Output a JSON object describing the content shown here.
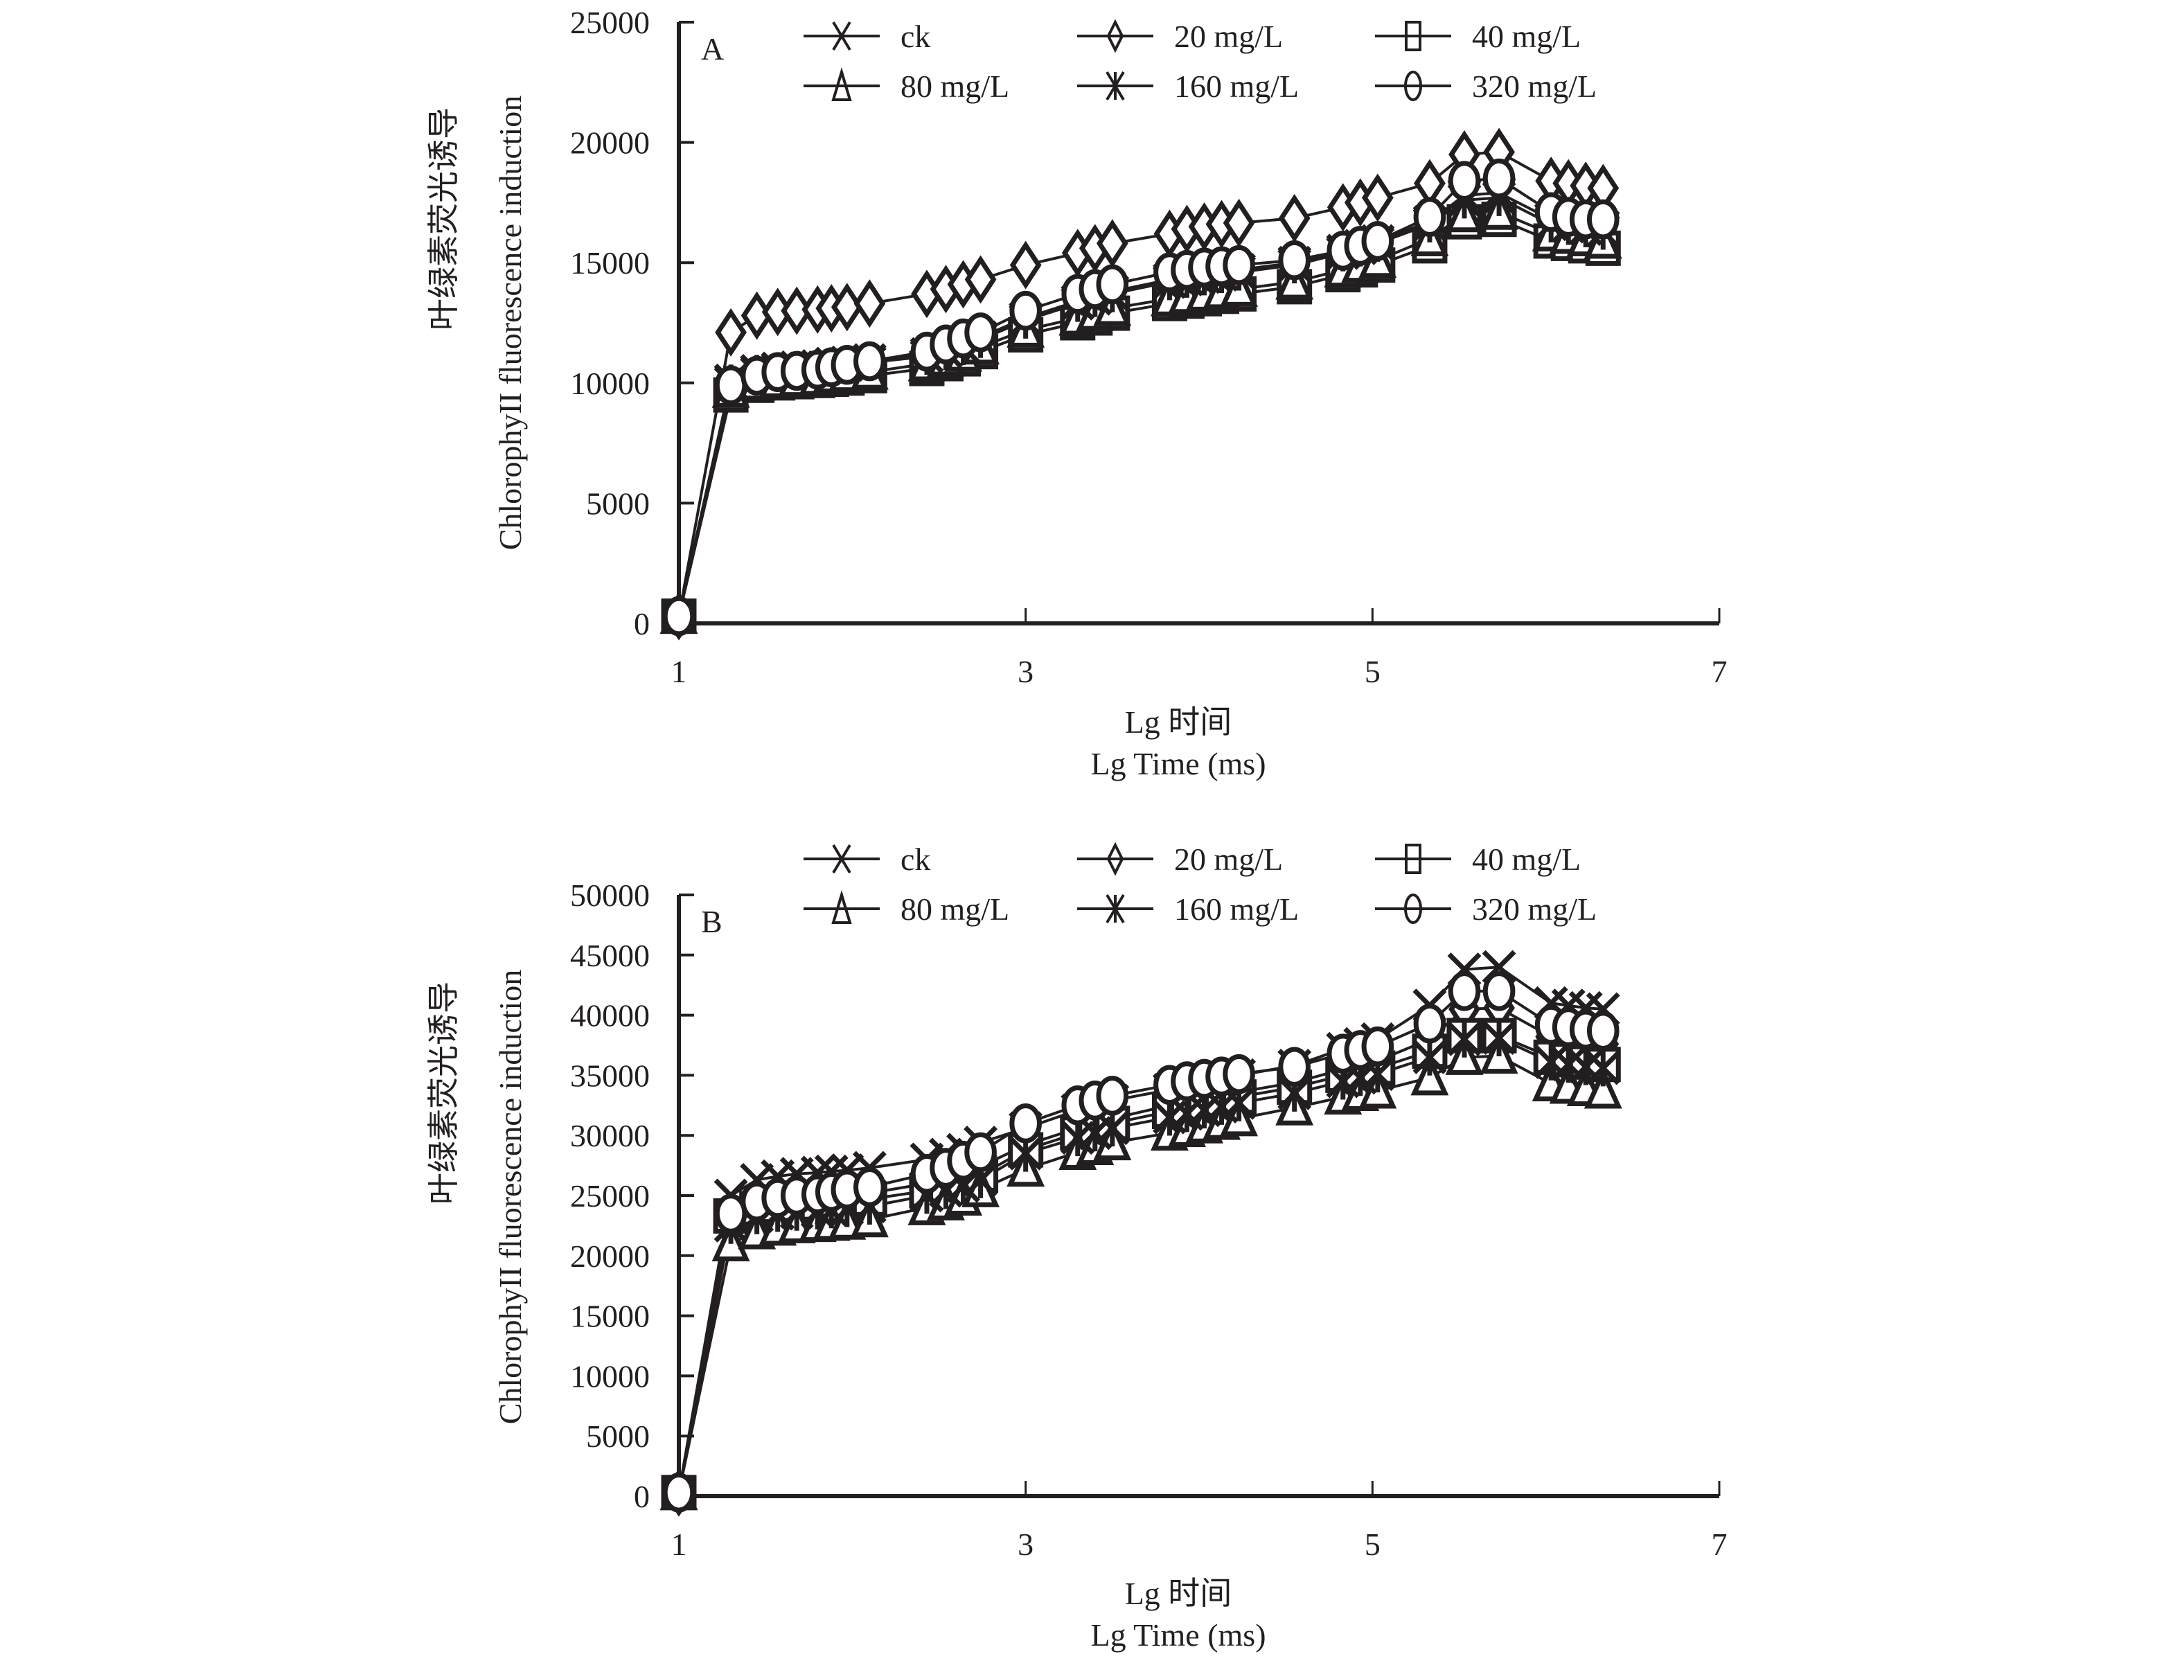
{
  "chart_data": [
    {
      "type": "line",
      "panel": "A",
      "title": "",
      "xlabel_cn": "Lg 时间",
      "xlabel": "Lg Time (ms)",
      "ylabel_cn": "叶绿素荧光诱导",
      "ylabel": "ChlorophyII fluorescence induction",
      "xlim": [
        1,
        7
      ],
      "ylim": [
        0,
        25000
      ],
      "xticks": [
        "1",
        "3",
        "5",
        "7"
      ],
      "xtick_values": [
        1,
        3,
        5,
        7
      ],
      "yticks": [
        "0",
        "5000",
        "10000",
        "15000",
        "20000",
        "25000"
      ],
      "ytick_values": [
        0,
        5000,
        10000,
        15000,
        20000,
        25000
      ],
      "grid": false,
      "legend_position": "top-center",
      "x": [
        1.0,
        1.3,
        1.45,
        1.57,
        1.68,
        1.8,
        1.88,
        1.97,
        2.1,
        2.43,
        2.54,
        2.64,
        2.74,
        3.0,
        3.3,
        3.4,
        3.5,
        3.83,
        3.93,
        4.03,
        4.13,
        4.23,
        4.55,
        4.83,
        4.93,
        5.03,
        5.33,
        5.53,
        5.73,
        6.03,
        6.13,
        6.23,
        6.33
      ],
      "series": [
        {
          "name": "ck",
          "marker": "x",
          "values": [
            300,
            10100,
            10500,
            10600,
            10650,
            10700,
            10800,
            10850,
            10950,
            11200,
            11400,
            11600,
            11900,
            12700,
            13400,
            13600,
            13800,
            14300,
            14400,
            14500,
            14600,
            14700,
            15000,
            15500,
            15700,
            15900,
            16700,
            17800,
            17900,
            16800,
            16700,
            16600,
            16500
          ]
        },
        {
          "name": "20 mg/L",
          "marker": "diamond",
          "values": [
            300,
            12100,
            12800,
            12950,
            13000,
            13050,
            13100,
            13150,
            13300,
            13700,
            13900,
            14100,
            14300,
            14900,
            15400,
            15600,
            15800,
            16200,
            16400,
            16500,
            16600,
            16650,
            16850,
            17300,
            17500,
            17700,
            18300,
            19500,
            19600,
            18400,
            18300,
            18200,
            18100
          ]
        },
        {
          "name": "40 mg/L",
          "marker": "square",
          "values": [
            300,
            9500,
            9900,
            10000,
            10050,
            10100,
            10150,
            10200,
            10300,
            10600,
            10800,
            11000,
            11300,
            12000,
            12500,
            12700,
            12900,
            13300,
            13400,
            13500,
            13600,
            13700,
            14000,
            14500,
            14700,
            14900,
            15700,
            16700,
            16800,
            15900,
            15800,
            15700,
            15600
          ]
        },
        {
          "name": "80 mg/L",
          "marker": "triangle",
          "values": [
            300,
            9700,
            10000,
            10100,
            10150,
            10200,
            10300,
            10350,
            10450,
            10800,
            11000,
            11200,
            11500,
            12200,
            12700,
            12900,
            13100,
            13500,
            13600,
            13700,
            13800,
            13900,
            14200,
            14700,
            14900,
            15100,
            16000,
            17000,
            17100,
            16200,
            16100,
            16000,
            15900
          ]
        },
        {
          "name": "160 mg/L",
          "marker": "asterisk",
          "values": [
            300,
            10000,
            10400,
            10500,
            10550,
            10600,
            10700,
            10750,
            10850,
            11100,
            11300,
            11500,
            11800,
            12600,
            13300,
            13500,
            13700,
            14200,
            14300,
            14400,
            14500,
            14600,
            14900,
            15400,
            15600,
            15800,
            16600,
            17600,
            17700,
            16600,
            16500,
            16400,
            16300
          ]
        },
        {
          "name": "320 mg/L",
          "marker": "circle",
          "values": [
            300,
            9900,
            10300,
            10450,
            10500,
            10550,
            10650,
            10750,
            10900,
            11300,
            11600,
            11850,
            12100,
            13000,
            13700,
            13900,
            14100,
            14600,
            14700,
            14800,
            14850,
            14900,
            15100,
            15500,
            15700,
            15900,
            16900,
            18400,
            18500,
            17100,
            16900,
            16800,
            16800
          ]
        }
      ]
    },
    {
      "type": "line",
      "panel": "B",
      "title": "",
      "xlabel_cn": "Lg 时间",
      "xlabel": "Lg Time (ms)",
      "ylabel_cn": "叶绿素荧光诱导",
      "ylabel": "ChlorophyII fluorescence induction",
      "xlim": [
        1,
        7
      ],
      "ylim": [
        0,
        50000
      ],
      "xticks": [
        "1",
        "3",
        "5",
        "7"
      ],
      "xtick_values": [
        1,
        3,
        5,
        7
      ],
      "yticks": [
        "0",
        "5000",
        "10000",
        "15000",
        "20000",
        "25000",
        "30000",
        "35000",
        "40000",
        "45000",
        "50000"
      ],
      "ytick_values": [
        0,
        5000,
        10000,
        15000,
        20000,
        25000,
        30000,
        35000,
        40000,
        45000,
        50000
      ],
      "grid": false,
      "legend_position": "top-center",
      "x": [
        1.0,
        1.3,
        1.45,
        1.57,
        1.68,
        1.8,
        1.88,
        1.97,
        2.1,
        2.43,
        2.54,
        2.64,
        2.74,
        3.0,
        3.3,
        3.4,
        3.5,
        3.83,
        3.93,
        4.03,
        4.13,
        4.23,
        4.55,
        4.83,
        4.93,
        5.03,
        5.33,
        5.53,
        5.73,
        6.03,
        6.13,
        6.23,
        6.33
      ],
      "series": [
        {
          "name": "ck",
          "marker": "x",
          "values": [
            300,
            25000,
            26300,
            26600,
            26800,
            26900,
            27000,
            27100,
            27300,
            28000,
            28400,
            28800,
            29400,
            30600,
            32100,
            32500,
            32900,
            33800,
            34100,
            34400,
            34700,
            35000,
            35800,
            37200,
            37600,
            38000,
            40800,
            43800,
            44000,
            41000,
            40800,
            40600,
            40500
          ]
        },
        {
          "name": "20 mg/L",
          "marker": "diamond",
          "values": [
            300,
            22800,
            24000,
            24300,
            24500,
            24600,
            24800,
            25000,
            25200,
            26000,
            26400,
            26800,
            27400,
            29200,
            30600,
            31000,
            31400,
            32500,
            32800,
            33000,
            33300,
            33600,
            34400,
            35500,
            35800,
            36200,
            38000,
            40500,
            40600,
            38200,
            38000,
            37800,
            37600
          ]
        },
        {
          "name": "40 mg/L",
          "marker": "square",
          "values": [
            300,
            23300,
            23900,
            24100,
            24200,
            24300,
            24400,
            24500,
            24700,
            25400,
            25800,
            26200,
            26700,
            28800,
            30200,
            30600,
            31000,
            32000,
            32300,
            32600,
            32900,
            33200,
            34000,
            35000,
            35300,
            35600,
            37000,
            38300,
            38300,
            36500,
            36300,
            36100,
            35900
          ]
        },
        {
          "name": "80 mg/L",
          "marker": "triangle",
          "values": [
            300,
            21000,
            22000,
            22300,
            22500,
            22600,
            22700,
            22800,
            23000,
            24000,
            24400,
            24800,
            25500,
            27200,
            28600,
            29000,
            29400,
            30200,
            30500,
            30800,
            31100,
            31400,
            32300,
            33200,
            33500,
            33700,
            34800,
            36500,
            36600,
            34300,
            34100,
            33900,
            33700
          ]
        },
        {
          "name": "160 mg/L",
          "marker": "asterisk",
          "values": [
            300,
            22500,
            23300,
            23500,
            23600,
            23700,
            23800,
            23900,
            24100,
            25000,
            25400,
            25800,
            26300,
            28500,
            29800,
            30200,
            30600,
            31500,
            31800,
            32100,
            32400,
            32700,
            33500,
            34500,
            34800,
            35100,
            36500,
            38000,
            38100,
            36100,
            35900,
            35700,
            35600
          ]
        },
        {
          "name": "320 mg/L",
          "marker": "circle",
          "values": [
            300,
            23500,
            24500,
            24800,
            25000,
            25100,
            25300,
            25500,
            25700,
            26800,
            27300,
            27900,
            28600,
            31000,
            32500,
            32900,
            33300,
            34200,
            34500,
            34700,
            34900,
            35100,
            35700,
            36800,
            37100,
            37400,
            39300,
            42000,
            42000,
            39200,
            39000,
            38800,
            38700
          ]
        }
      ]
    }
  ],
  "legend": [
    {
      "label": "ck",
      "marker": "x"
    },
    {
      "label": "20 mg/L",
      "marker": "diamond"
    },
    {
      "label": "40 mg/L",
      "marker": "square"
    },
    {
      "label": "80 mg/L",
      "marker": "triangle"
    },
    {
      "label": "160 mg/L",
      "marker": "asterisk"
    },
    {
      "label": "320 mg/L",
      "marker": "circle"
    }
  ],
  "colors": {
    "ink": "#231f20",
    "marker_fill": "#ffffff",
    "background": "#ffffff"
  }
}
